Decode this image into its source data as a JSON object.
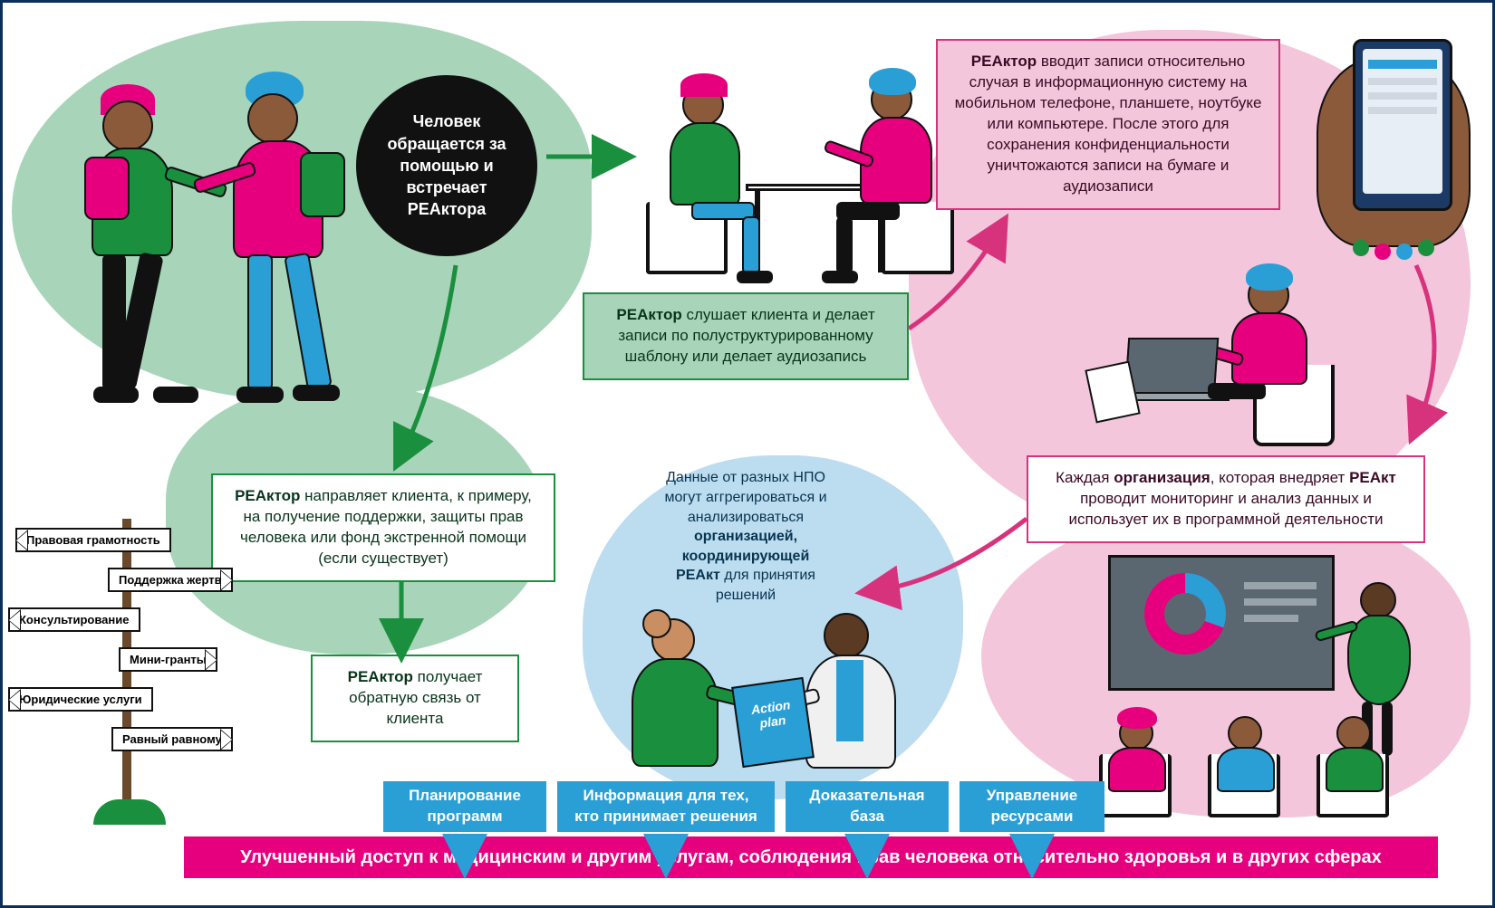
{
  "colors": {
    "green_fill": "#a8d5ba",
    "green_line": "#1a8f3d",
    "pink_fill": "#f4c6db",
    "pink_line": "#d7337d",
    "blue_fill": "#bcdcf0",
    "blue_solid": "#2a9fd6",
    "magenta": "#e6007e",
    "black": "#111111",
    "skin": "#8a5a3b",
    "skin_light": "#c98f62",
    "shirt_green": "#1a8f3d",
    "shirt_pink": "#e6007e",
    "shirt_blue": "#2a9fd6",
    "pants_blue": "#2a9fd6",
    "grey": "#5b6770"
  },
  "step1_circle": "Человек обращается за помощью и встречает РЕАктора",
  "step2_box_html": "<b>РЕАктор</b> слушает клиента и делает записи по полуструктурированному шаблону или делает аудиозапись",
  "step3_box_html": "<b>РЕАктор</b> вводит записи относительно случая в информационную систему на мобильном телефоне, планшете, ноутбуке или компьютере. После этого для сохранения конфиденциальности уничтожаются записи на бумаге и аудиозаписи",
  "step4_box_html": "Каждая <b>организация</b>, которая внедряет <b>РЕАкт</b> проводит мониторинг и анализ данных и использует их в программной деятельности",
  "step5_circle_html": "Данные от разных НПО могут аггрегироваться и анализироваться <b>организацией, координирующей РЕАкт</b> для принятия решений",
  "step_refer_html": "<b>РЕАктор</b> направляет клиента, к примеру, на получение поддержки, защиты прав человека или фонд экстренной помощи (если существует)",
  "step_feedback_html": "<b>РЕАктор</b> получает обратную связь от клиента",
  "blue_boxes": [
    "Планирование программ",
    "Информация для тех, кто принимает решения",
    "Доказательная база",
    "Управление ресурсами"
  ],
  "outcome": "Улучшенный доступ к медицинским и другим услугам, соблюдения прав человека относительно здоровья и в других сферах",
  "signs": [
    "Правовая грамотность",
    "Поддержка жертв",
    "Консультирование",
    "Мини-гранты",
    "Юридические услуги",
    "Равный равному"
  ],
  "folder_label": "Action plan"
}
